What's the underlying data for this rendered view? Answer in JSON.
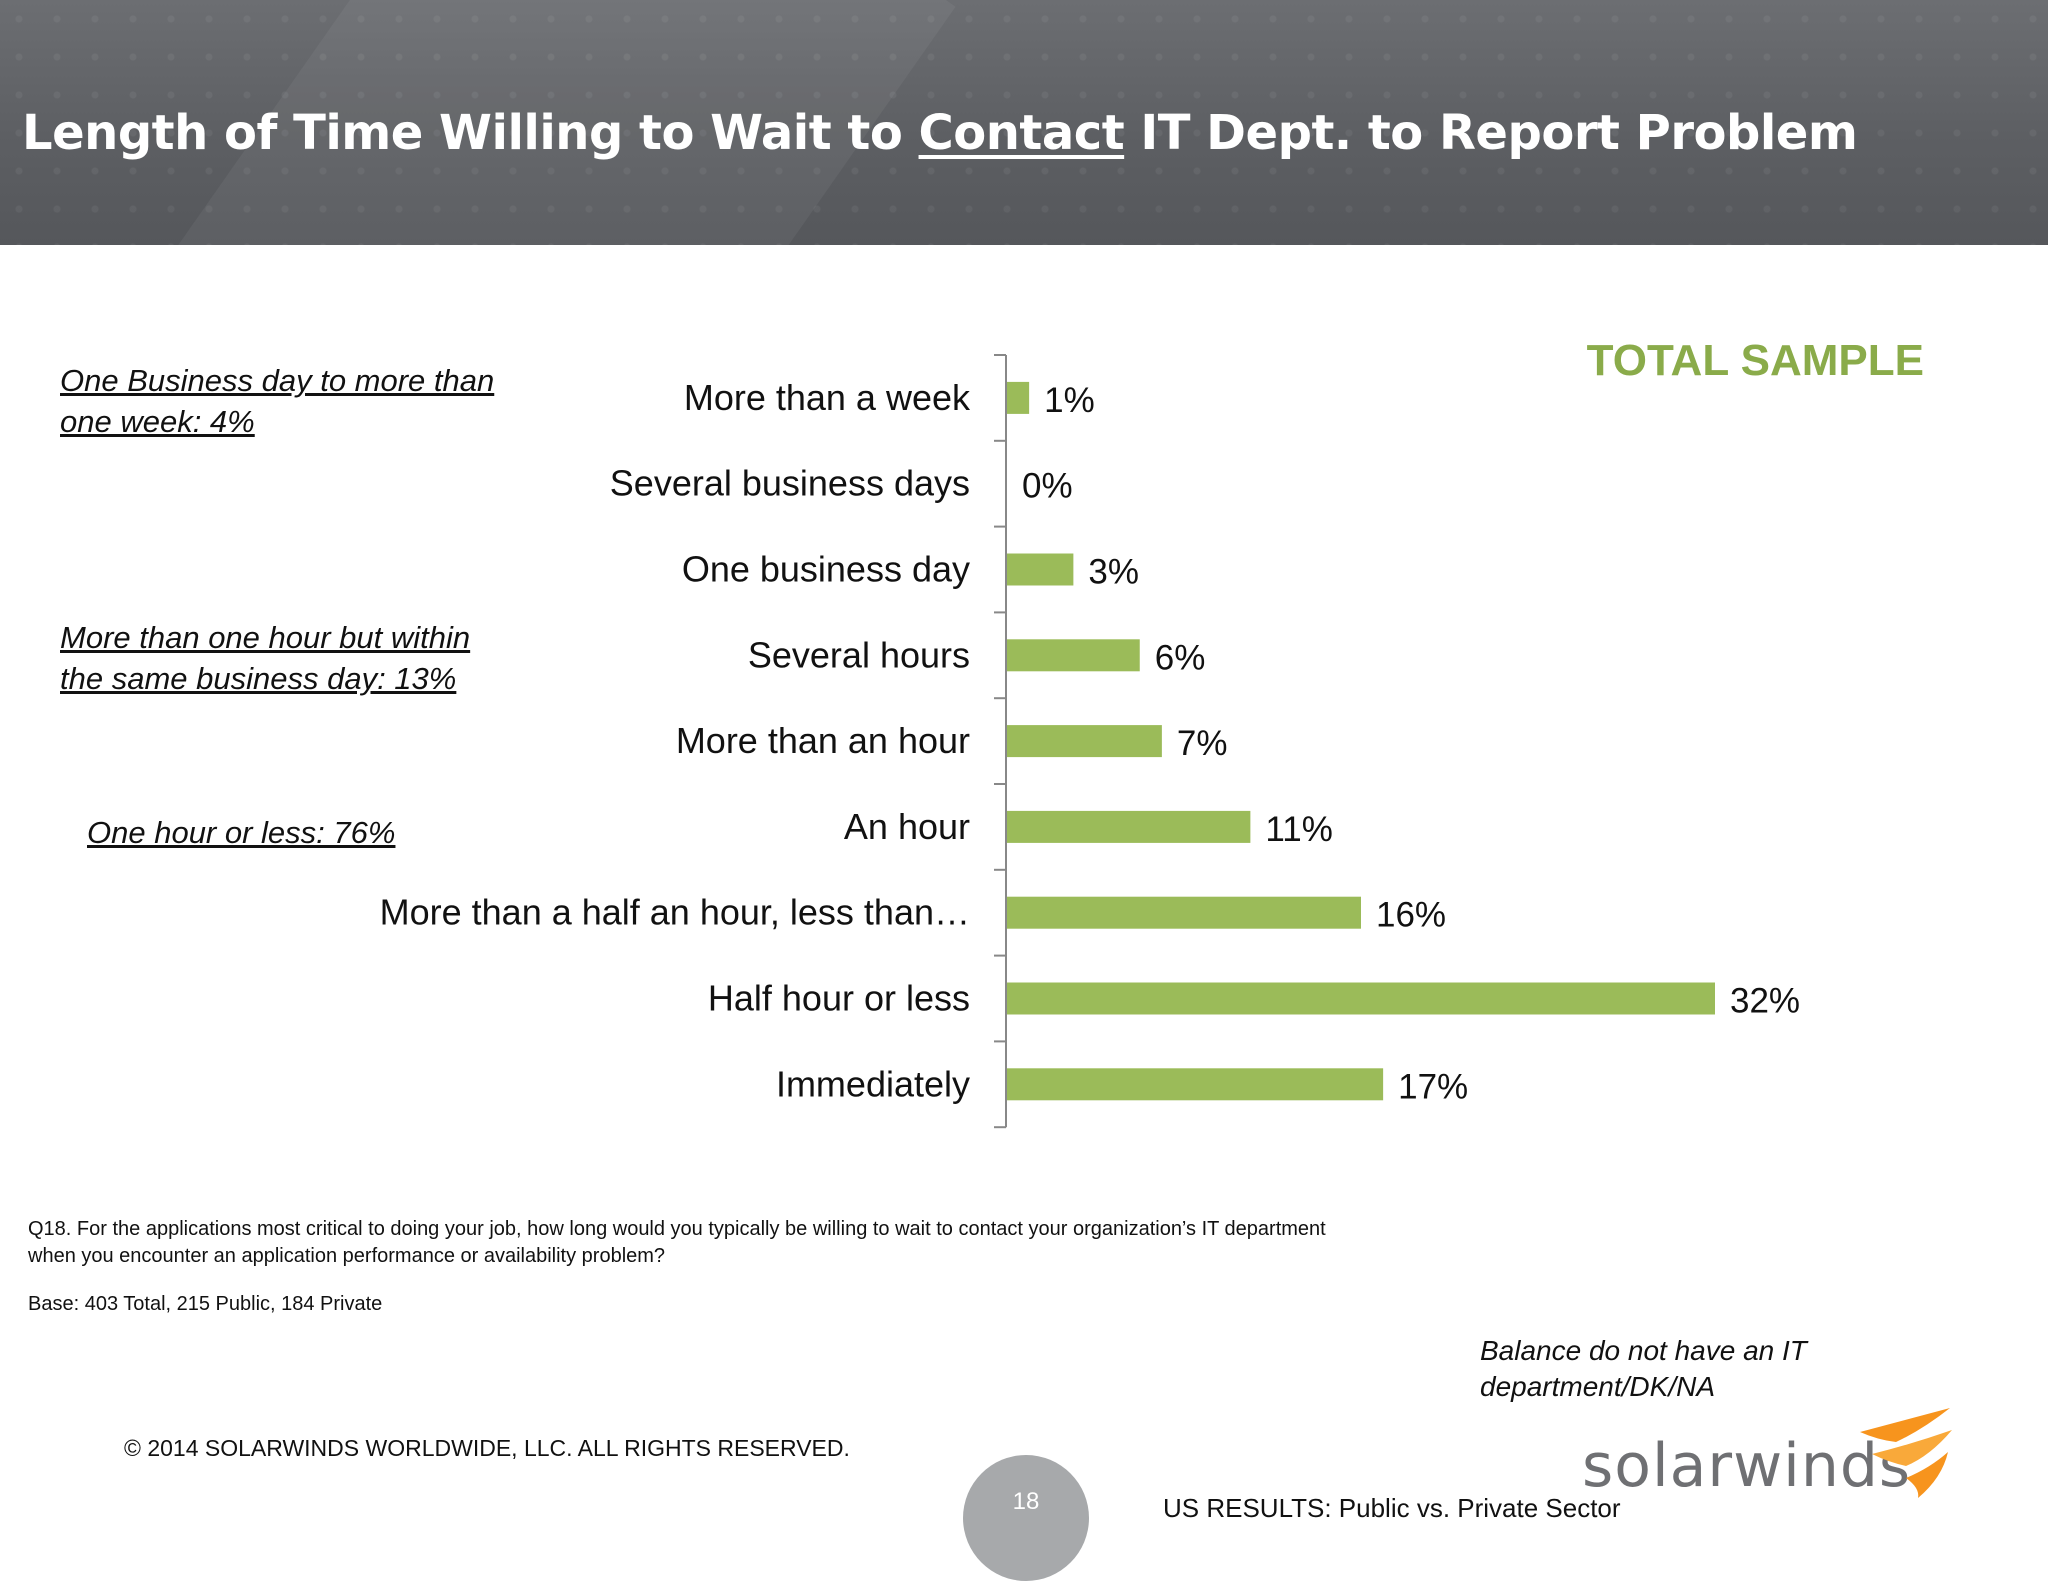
{
  "header": {
    "title_before": "Length of Time Willing to Wait to ",
    "title_contact": "Contact",
    "title_after": " IT Dept. to Report Problem"
  },
  "total_sample_label": "TOTAL SAMPLE",
  "group_notes": [
    "One Business day to more than one week:  4%",
    "More than one hour but within the same business day:  13%",
    "One hour or less:  76%"
  ],
  "chart_data": {
    "type": "bar",
    "orientation": "horizontal",
    "categories": [
      "More than a week",
      "Several business days",
      "One business day",
      "Several hours",
      "More than an hour",
      "An hour",
      "More than a half an hour, less than…",
      "Half hour or less",
      "Immediately"
    ],
    "values": [
      1,
      0,
      3,
      6,
      7,
      11,
      16,
      32,
      17
    ],
    "value_labels": [
      "1%",
      "0%",
      "3%",
      "6%",
      "7%",
      "11%",
      "16%",
      "32%",
      "17%"
    ],
    "title": "",
    "xlabel": "",
    "ylabel": "",
    "xlim": [
      0,
      32
    ],
    "grid": false,
    "legend": "none",
    "bar_color": "#9bbb59"
  },
  "question": "Q18. For the applications most critical to doing your job, how long would you typically be willing to wait to contact your organization’s IT department when you encounter an application performance or availability problem?",
  "base_note": "Base:  403  Total, 215 Public, 184 Private",
  "balance_note": "Balance do not have an IT department/DK/NA",
  "copyright": "© 2014 SOLARWINDS WORLDWIDE, LLC.  ALL RIGHTS RESERVED.",
  "page_number": "18",
  "footer_results": "US RESULTS:  Public vs. Private Sector",
  "logo_text": "solarwinds",
  "colors": {
    "accent_green": "#8aab4a",
    "bar_green": "#9bbb59",
    "logo_orange": "#f7941d",
    "header_gray": "#5d5f63"
  }
}
